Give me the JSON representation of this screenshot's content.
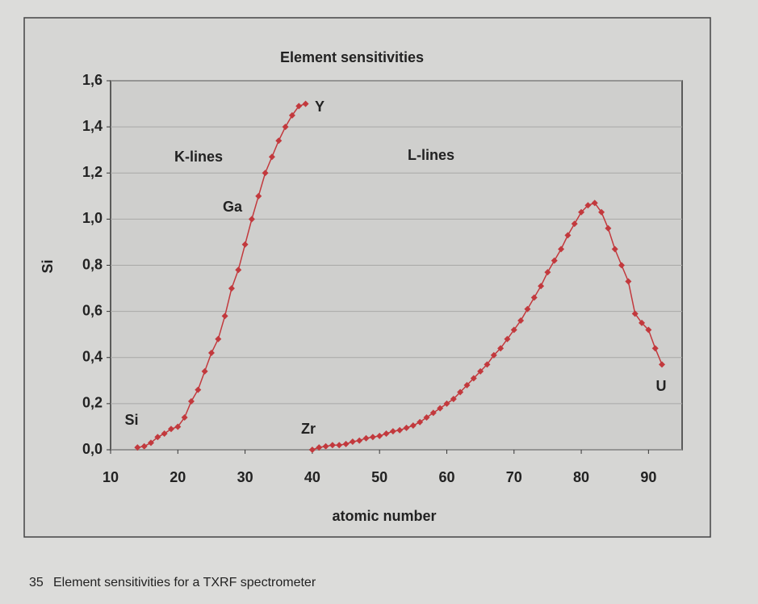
{
  "chart_data": {
    "type": "line",
    "title": "Element sensitivities",
    "x_label": "atomic number",
    "y_label": "Si",
    "xlim": [
      10,
      95
    ],
    "xticks": [
      10,
      20,
      30,
      40,
      50,
      60,
      70,
      80,
      90
    ],
    "ylim": [
      0,
      1.6
    ],
    "yticks": [
      {
        "value": 0,
        "label": "0,0"
      },
      {
        "value": 0.2,
        "label": "0,2"
      },
      {
        "value": 0.4,
        "label": "0,4"
      },
      {
        "value": 0.6,
        "label": "0,6"
      },
      {
        "value": 0.8,
        "label": "0,8"
      },
      {
        "value": 1.0,
        "label": "1,0"
      },
      {
        "value": 1.2,
        "label": "1,2"
      },
      {
        "value": 1.4,
        "label": "1,4"
      },
      {
        "value": 1.6,
        "label": "1,6"
      }
    ],
    "grid": true,
    "series": [
      {
        "name": "K-lines",
        "color": "#c2393d",
        "x": [
          14,
          15,
          16,
          17,
          18,
          19,
          20,
          21,
          22,
          23,
          24,
          25,
          26,
          27,
          28,
          29,
          30,
          31,
          32,
          33,
          34,
          35,
          36,
          37,
          38,
          39
        ],
        "values": [
          0.01,
          0.015,
          0.03,
          0.055,
          0.07,
          0.09,
          0.1,
          0.14,
          0.21,
          0.26,
          0.34,
          0.42,
          0.48,
          0.58,
          0.7,
          0.78,
          0.89,
          1.0,
          1.1,
          1.2,
          1.27,
          1.34,
          1.4,
          1.45,
          1.49,
          1.5
        ]
      },
      {
        "name": "L-lines",
        "color": "#c2393d",
        "x": [
          40,
          41,
          42,
          43,
          44,
          45,
          46,
          47,
          48,
          49,
          50,
          51,
          52,
          53,
          54,
          55,
          56,
          57,
          58,
          59,
          60,
          61,
          62,
          63,
          64,
          65,
          66,
          67,
          68,
          69,
          70,
          71,
          72,
          73,
          74,
          75,
          76,
          77,
          78,
          79,
          80,
          81,
          82,
          83,
          84,
          85,
          86,
          87,
          88,
          89,
          90,
          91,
          92
        ],
        "values": [
          0.0,
          0.01,
          0.015,
          0.02,
          0.02,
          0.025,
          0.035,
          0.04,
          0.05,
          0.055,
          0.06,
          0.07,
          0.08,
          0.085,
          0.095,
          0.105,
          0.12,
          0.14,
          0.16,
          0.18,
          0.2,
          0.22,
          0.25,
          0.28,
          0.31,
          0.34,
          0.37,
          0.41,
          0.44,
          0.48,
          0.52,
          0.56,
          0.61,
          0.66,
          0.71,
          0.77,
          0.82,
          0.87,
          0.93,
          0.98,
          1.03,
          1.06,
          1.07,
          1.03,
          0.96,
          0.87,
          0.8,
          0.73,
          0.59,
          0.55,
          0.52,
          0.44,
          0.37
        ]
      }
    ],
    "annotations": [
      "Si",
      "Ga",
      "Y",
      "Zr",
      "U"
    ],
    "caption_number": "35",
    "caption": "Element sensitivities for a TXRF spectrometer"
  }
}
